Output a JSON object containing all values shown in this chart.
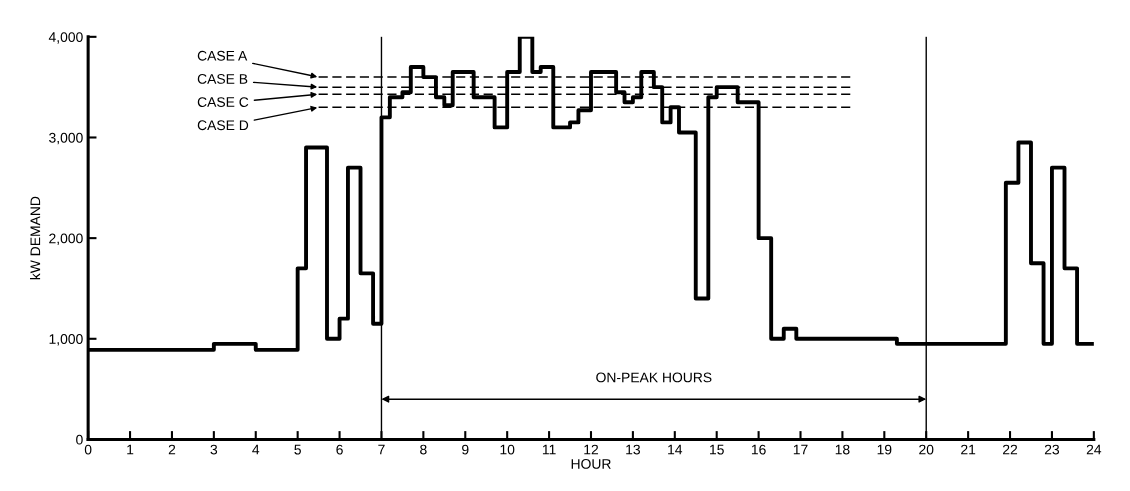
{
  "chart_data": {
    "type": "step",
    "xlabel": "HOUR",
    "ylabel": "kW DEMAND",
    "xlim": [
      0,
      24
    ],
    "ylim": [
      0,
      4000
    ],
    "xticks": [
      0,
      1,
      2,
      3,
      4,
      5,
      6,
      7,
      8,
      9,
      10,
      11,
      12,
      13,
      14,
      15,
      16,
      17,
      18,
      19,
      20,
      21,
      22,
      23,
      24
    ],
    "yticks": [
      0,
      {
        "value": 1000,
        "label": "1,000"
      },
      {
        "value": 2000,
        "label": "2,000"
      },
      {
        "value": 3000,
        "label": "3,000"
      },
      {
        "value": 4000,
        "label": "4,000"
      }
    ],
    "series": [
      {
        "color": "#000000",
        "x": [
          0,
          3,
          4,
          5,
          5.2,
          5.7,
          6,
          6.2,
          6.5,
          6.8,
          7,
          7.2,
          7.5,
          7.7,
          8,
          8.3,
          8.5,
          8.7,
          9.2,
          9.7,
          10,
          10.3,
          10.6,
          10.8,
          11.1,
          11.5,
          11.7,
          12,
          12.6,
          12.8,
          13,
          13.2,
          13.5,
          13.7,
          13.9,
          14.1,
          14.5,
          14.8,
          15,
          15.5,
          16,
          16.3,
          16.6,
          16.9,
          19.3,
          21.9,
          22.2,
          22.5,
          22.8,
          23,
          23.3,
          23.6,
          24
        ],
        "values": [
          890,
          950,
          890,
          1700,
          2900,
          1000,
          1200,
          2700,
          1650,
          1150,
          3200,
          3400,
          3450,
          3700,
          3600,
          3400,
          3320,
          3650,
          3400,
          3100,
          3650,
          4000,
          3650,
          3700,
          3100,
          3150,
          3270,
          3650,
          3450,
          3350,
          3400,
          3650,
          3500,
          3150,
          3300,
          3050,
          1400,
          3400,
          3500,
          3350,
          2000,
          1000,
          1100,
          1000,
          950,
          2550,
          2950,
          1750,
          950,
          2700,
          1700,
          950,
          950
        ]
      }
    ],
    "ref_lines": [
      {
        "axis": "y",
        "value": 3600,
        "label": "CASE A",
        "line_style": "dashed",
        "color": "#000000"
      },
      {
        "axis": "y",
        "value": 3500,
        "label": "CASE B",
        "line_style": "dashed",
        "color": "#000000"
      },
      {
        "axis": "y",
        "value": 3430,
        "label": "CASE C",
        "line_style": "dashed",
        "color": "#000000"
      },
      {
        "axis": "y",
        "value": 3300,
        "label": "CASE D",
        "line_style": "dashed",
        "color": "#000000"
      },
      {
        "axis": "x",
        "value": 7,
        "color": "#000000",
        "line_style": "solid"
      },
      {
        "axis": "x",
        "value": 20,
        "color": "#000000",
        "line_style": "solid"
      }
    ],
    "annotations": [
      "ON-PEAK HOURS"
    ],
    "grid": false,
    "legend": false
  }
}
